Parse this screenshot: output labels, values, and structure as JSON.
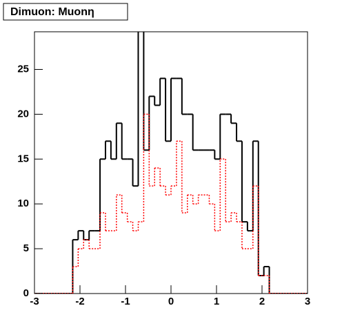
{
  "chart_data": {
    "type": "histogram",
    "title": "Dimuon: Muonη",
    "bins": [
      -3,
      -2.88,
      -2.76,
      -2.64,
      -2.52,
      -2.4,
      -2.28,
      -2.16,
      -2.04,
      -1.92,
      -1.8,
      -1.68,
      -1.56,
      -1.44,
      -1.32,
      -1.2,
      -1.08,
      -0.96,
      -0.84,
      -0.72,
      -0.6,
      -0.48,
      -0.36,
      -0.24,
      -0.12,
      0,
      0.12,
      0.24,
      0.36,
      0.48,
      0.6,
      0.72,
      0.84,
      0.96,
      1.08,
      1.2,
      1.32,
      1.44,
      1.56,
      1.68,
      1.8,
      1.92,
      2.04,
      2.16,
      2.28,
      2.4,
      2.52,
      2.64,
      2.76,
      2.88,
      3
    ],
    "series": [
      {
        "color": "#000000",
        "values": [
          0,
          0,
          0,
          0,
          0,
          0,
          0,
          6,
          7,
          6,
          7,
          7,
          15,
          17,
          15,
          19,
          15,
          15,
          12,
          30,
          16,
          22,
          21,
          24,
          17,
          24,
          24,
          20,
          20,
          16,
          16,
          16,
          16,
          15,
          20,
          20,
          19,
          17,
          8,
          7,
          17,
          2,
          3,
          0,
          0,
          0,
          0,
          0,
          0,
          0
        ]
      },
      {
        "color": "#ff0000",
        "values": [
          0,
          0,
          0,
          0,
          0,
          0,
          0,
          3,
          5,
          6,
          5,
          5,
          9,
          7,
          7,
          11,
          9,
          8,
          7,
          8,
          20,
          12,
          14,
          12,
          11,
          12,
          17,
          9,
          11,
          10,
          11,
          11,
          10,
          7,
          15,
          8,
          9,
          8,
          5,
          5,
          12,
          2,
          2,
          0,
          0,
          0,
          0,
          0,
          0,
          0
        ]
      }
    ],
    "xlim": [
      -3,
      3
    ],
    "ylim": [
      0,
      29.2
    ],
    "xticks": [
      -3,
      -2,
      -1,
      0,
      1,
      2,
      3
    ],
    "yticks": [
      0,
      5,
      10,
      15,
      20,
      25
    ]
  }
}
